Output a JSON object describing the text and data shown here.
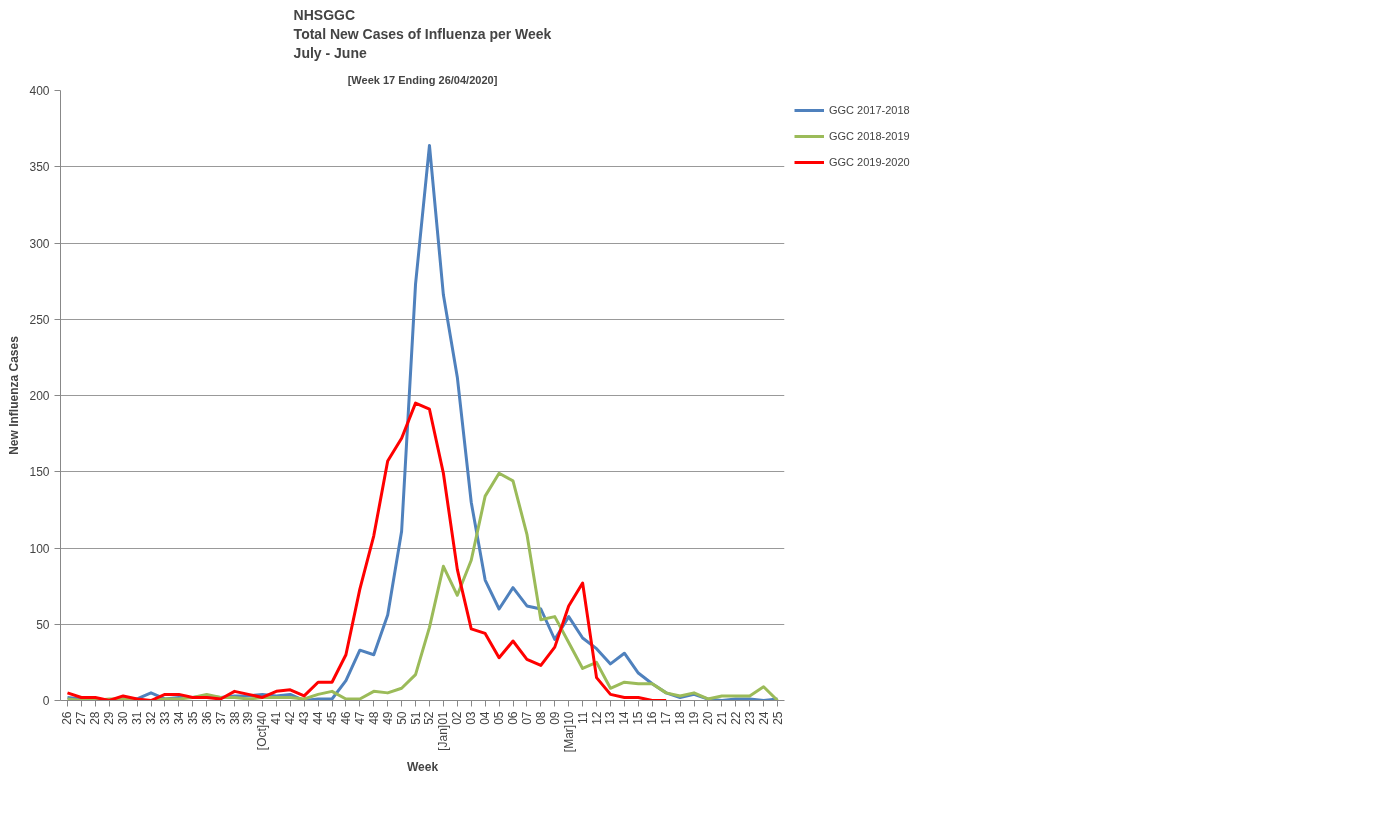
{
  "chart_data": {
    "type": "line",
    "title": "NHSGGC\nTotal New Cases of Influenza per Week\nJuly - June",
    "subtitle": "[Week 17 Ending 26/04/2020]",
    "xlabel": "Week",
    "ylabel": "New Influenza Cases",
    "categories": [
      "26",
      "27",
      "28",
      "29",
      "30",
      "31",
      "32",
      "33",
      "34",
      "35",
      "36",
      "37",
      "38",
      "39",
      "[Oct]40",
      "41",
      "42",
      "43",
      "44",
      "45",
      "46",
      "47",
      "48",
      "49",
      "50",
      "51",
      "52",
      "[Jan]01",
      "02",
      "03",
      "04",
      "05",
      "06",
      "07",
      "08",
      "09",
      "[Mar]10",
      "11",
      "12",
      "13",
      "14",
      "15",
      "16",
      "17",
      "18",
      "19",
      "20",
      "21",
      "22",
      "23",
      "24",
      "25"
    ],
    "series": [
      {
        "name": "GGC 2017-2018",
        "color": "#4f81bd",
        "values": [
          2,
          1,
          1,
          0,
          1,
          1,
          5,
          1,
          2,
          2,
          3,
          2,
          3,
          3,
          4,
          3,
          4,
          0,
          1,
          1,
          13,
          33,
          30,
          56,
          111,
          273,
          364,
          266,
          212,
          130,
          79,
          60,
          74,
          62,
          60,
          40,
          55,
          41,
          34,
          24,
          31,
          18,
          11,
          5,
          2,
          4,
          1,
          0,
          1,
          1,
          0,
          1
        ]
      },
      {
        "name": "GGC 2018-2019",
        "color": "#9bbb59",
        "values": [
          1,
          0,
          0,
          1,
          1,
          0,
          0,
          1,
          1,
          2,
          4,
          2,
          2,
          1,
          2,
          2,
          2,
          1,
          4,
          6,
          1,
          1,
          6,
          5,
          8,
          17,
          48,
          88,
          69,
          92,
          134,
          149,
          144,
          109,
          53,
          55,
          38,
          21,
          25,
          8,
          12,
          11,
          11,
          5,
          3,
          5,
          1,
          3,
          3,
          3,
          9,
          0
        ]
      },
      {
        "name": "GGC 2019-2020",
        "color": "#ff0000",
        "values": [
          5,
          2,
          2,
          0,
          3,
          1,
          0,
          4,
          4,
          2,
          2,
          1,
          6,
          4,
          2,
          6,
          7,
          3,
          12,
          12,
          30,
          73,
          108,
          157,
          172,
          195,
          191,
          149,
          86,
          47,
          44,
          28,
          39,
          27,
          23,
          35,
          62,
          77,
          15,
          4,
          2,
          2,
          0,
          0,
          null,
          null,
          null,
          null,
          null,
          null,
          null,
          null
        ]
      }
    ],
    "ylim": [
      0,
      400
    ],
    "yticks": [
      0,
      50,
      100,
      150,
      200,
      250,
      300,
      350,
      400
    ],
    "grid": "y",
    "legend": "top right",
    "marker": "none",
    "line_style": "solid"
  }
}
